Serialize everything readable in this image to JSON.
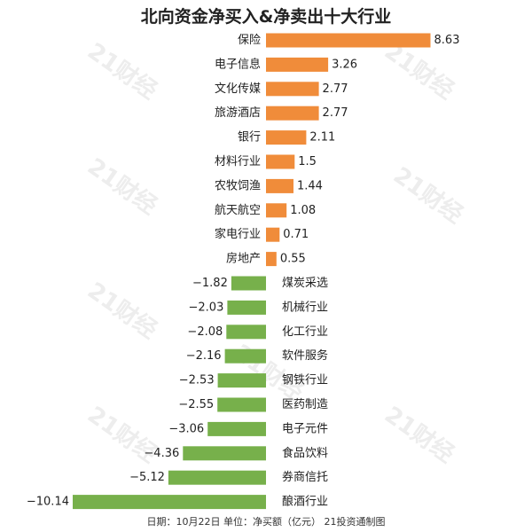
{
  "title": "北向资金净买入&净卖出十大行业",
  "footer": "日期：10月22日 单位：净买额（亿元） 21投资通制图",
  "watermark": "21财经",
  "colors": {
    "positive": "#F08C3A",
    "negative": "#77B04B"
  },
  "chart_data": {
    "type": "bar",
    "orientation": "horizontal",
    "categories": [
      "保险",
      "电子信息",
      "文化传媒",
      "旅游酒店",
      "银行",
      "材料行业",
      "农牧饲渔",
      "航天航空",
      "家电行业",
      "房地产",
      "煤炭采选",
      "机械行业",
      "化工行业",
      "软件服务",
      "钢铁行业",
      "医药制造",
      "电子元件",
      "食品饮料",
      "券商信托",
      "酿酒行业"
    ],
    "values": [
      8.63,
      3.26,
      2.77,
      2.77,
      2.11,
      1.5,
      1.44,
      1.08,
      0.71,
      0.55,
      -1.82,
      -2.03,
      -2.08,
      -2.16,
      -2.53,
      -2.55,
      -3.06,
      -4.36,
      -5.12,
      -10.14
    ],
    "value_labels": [
      "8.63",
      "3.26",
      "2.77",
      "2.77",
      "2.11",
      "1.5",
      "1.44",
      "1.08",
      "0.71",
      "0.55",
      "−1.82",
      "−2.03",
      "−2.08",
      "−2.16",
      "−2.53",
      "−2.55",
      "−3.06",
      "−4.36",
      "−5.12",
      "−10.14"
    ],
    "grid": false
  }
}
